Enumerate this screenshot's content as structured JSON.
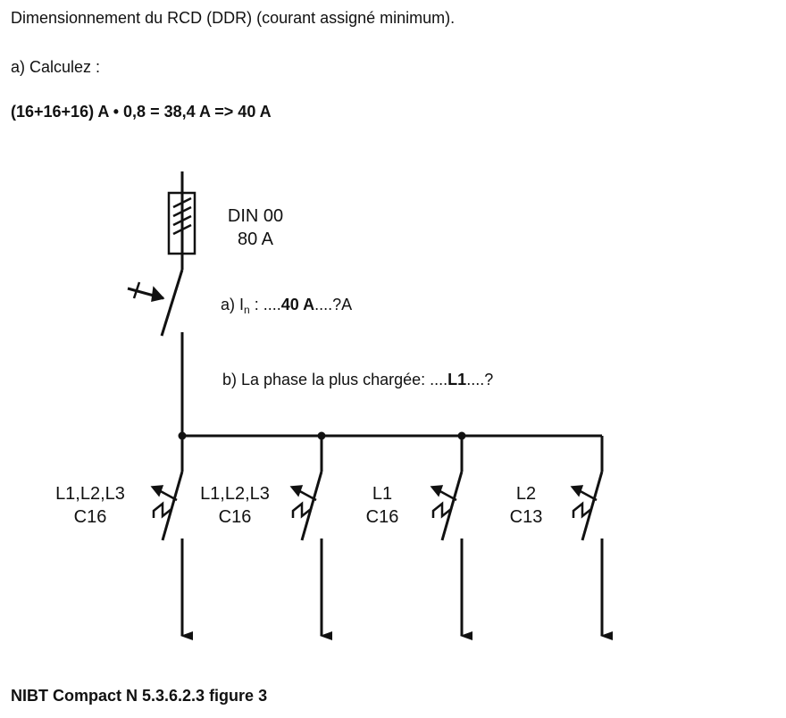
{
  "header": {
    "title": "Dimensionnement du RCD (DDR) (courant assigné minimum).",
    "instruction": "a) Calculez :",
    "formula": "(16+16+16) A • 0,8 = 38,4 A => 40 A"
  },
  "diagram": {
    "fuse": {
      "label_line1": "DIN 00",
      "label_line2": "80 A"
    },
    "question_a": {
      "prefix": "a) I",
      "subscript": "n",
      "colon": " : ....",
      "answer": "40 A",
      "suffix": "....?A"
    },
    "question_b": {
      "prefix": "b) La phase la plus chargée: ....",
      "answer": "L1",
      "suffix": "....?"
    },
    "breakers": [
      {
        "phases": "L1,L2,L3",
        "rating": "C16"
      },
      {
        "phases": "L1,L2,L3",
        "rating": "C16"
      },
      {
        "phases": "L1",
        "rating": "C16"
      },
      {
        "phases": "L2",
        "rating": "C13"
      }
    ]
  },
  "footer": {
    "reference": "NIBT Compact N 5.3.6.2.3 figure 3"
  }
}
